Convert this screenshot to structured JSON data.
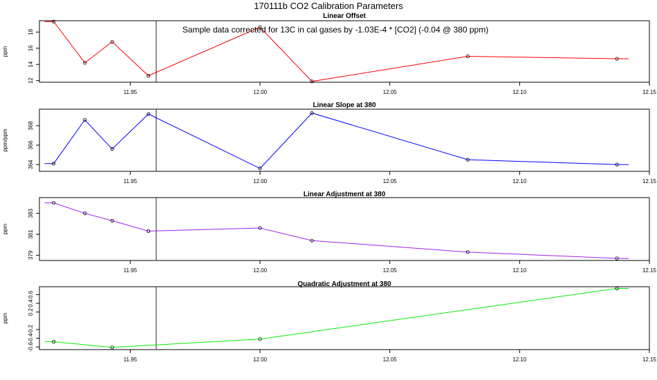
{
  "page_title": "170111b   CO2 Calibration Parameters",
  "annotation": "Sample data corrected for 13C in cal gases by -1.03E-4 * [CO2] (-0.04 @ 380 ppm)",
  "colors": {
    "red": "#ff0000",
    "blue": "#0000ff",
    "purple": "#a020f0",
    "green": "#00ee00",
    "axis": "#000000",
    "vline": "#444444"
  },
  "chart_data": [
    {
      "type": "line",
      "title": "Linear Offset",
      "ylabel": "ppm",
      "xlim": [
        11.915,
        12.15
      ],
      "ylim": [
        11.8,
        19.4
      ],
      "x_ticks": [
        "11.95",
        "12.00",
        "12.05",
        "12.10",
        "12.15"
      ],
      "y_ticks": [
        "12",
        "14",
        "16",
        "18"
      ],
      "vline_x": 11.96,
      "color": "#ff0000",
      "line_x": [
        11.917,
        11.9205,
        11.9325,
        11.943,
        11.957,
        12.0,
        12.02,
        12.08,
        12.1375,
        12.142
      ],
      "line_y": [
        19.3,
        19.3,
        14.2,
        16.8,
        12.6,
        18.6,
        11.9,
        15.0,
        14.7,
        14.7
      ],
      "points_x": [
        11.9205,
        11.9325,
        11.943,
        11.957,
        12.0,
        12.02,
        12.08,
        12.1375
      ],
      "points_y": [
        19.3,
        14.2,
        16.8,
        12.6,
        18.6,
        11.9,
        15.0,
        14.7
      ]
    },
    {
      "type": "line",
      "title": "Linear Slope at 380",
      "ylabel": "ppm/ppm",
      "xlim": [
        11.915,
        12.15
      ],
      "ylim": [
        363.3,
        369.7
      ],
      "x_ticks": [
        "11.95",
        "12.00",
        "12.05",
        "12.10",
        "12.15"
      ],
      "y_ticks": [
        "364",
        "366",
        "368"
      ],
      "vline_x": 11.96,
      "color": "#0000ff",
      "line_x": [
        11.917,
        11.9205,
        11.9325,
        11.943,
        11.957,
        12.0,
        12.02,
        12.08,
        12.1375,
        12.142
      ],
      "line_y": [
        364.1,
        364.1,
        368.6,
        365.6,
        369.2,
        363.6,
        369.3,
        364.5,
        364.0,
        364.0
      ],
      "points_x": [
        11.9205,
        11.9325,
        11.943,
        11.957,
        12.0,
        12.02,
        12.08,
        12.1375
      ],
      "points_y": [
        364.1,
        368.6,
        365.6,
        369.2,
        363.6,
        369.3,
        364.5,
        364.0
      ]
    },
    {
      "type": "line",
      "title": "Linear Adjustment at 380",
      "ylabel": "ppm",
      "xlim": [
        11.915,
        12.15
      ],
      "ylim": [
        378.5,
        384.5
      ],
      "x_ticks": [
        "11.95",
        "12.00",
        "12.05",
        "12.10",
        "12.15"
      ],
      "y_ticks": [
        "379",
        "381",
        "383"
      ],
      "vline_x": 11.96,
      "color": "#a020f0",
      "line_x": [
        11.917,
        11.9205,
        11.9325,
        11.943,
        11.957,
        12.0,
        12.02,
        12.08,
        12.1375,
        12.142
      ],
      "line_y": [
        384.0,
        384.0,
        383.0,
        382.3,
        381.3,
        381.6,
        380.4,
        379.3,
        378.7,
        378.7
      ],
      "points_x": [
        11.9205,
        11.9325,
        11.943,
        11.957,
        12.0,
        12.02,
        12.08,
        12.1375
      ],
      "points_y": [
        384.0,
        383.0,
        382.3,
        381.3,
        381.6,
        380.4,
        379.3,
        378.7
      ]
    },
    {
      "type": "line",
      "title": "Quadratic Adjustment at 380",
      "ylabel": "ppm",
      "xlim": [
        11.915,
        12.15
      ],
      "ylim": [
        -0.66,
        0.78
      ],
      "x_ticks": [
        "11.95",
        "12.00",
        "12.05",
        "12.10",
        "12.15"
      ],
      "y_ticks": [
        "-0.6",
        "-0.4",
        "-0.2",
        "0.2",
        "0.4",
        "0.6"
      ],
      "vline_x": 11.96,
      "color": "#00ee00",
      "line_x": [
        11.917,
        11.9205,
        11.943,
        12.0,
        12.1375,
        12.142
      ],
      "line_y": [
        -0.48,
        -0.48,
        -0.61,
        -0.42,
        0.74,
        0.74
      ],
      "points_x": [
        11.9205,
        11.943,
        12.0,
        12.1375
      ],
      "points_y": [
        -0.48,
        -0.61,
        -0.42,
        0.74
      ]
    }
  ]
}
